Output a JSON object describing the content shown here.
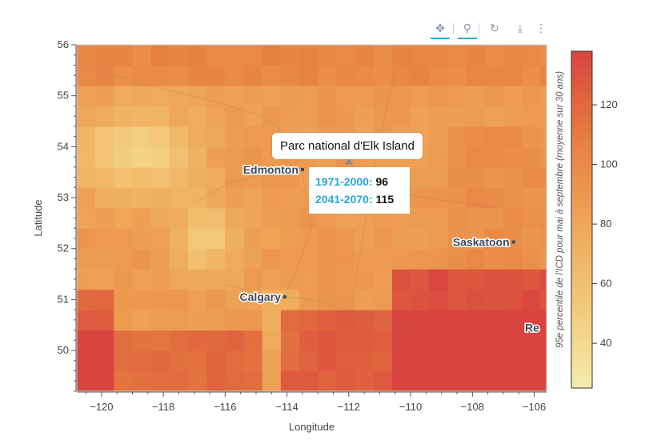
{
  "toolbar": {
    "tools": [
      {
        "name": "pan-icon",
        "glyph": "✥",
        "active": true
      },
      {
        "name": "wheel-zoom-icon",
        "glyph": "⚲",
        "active": true
      },
      {
        "name": "reset-icon",
        "glyph": "↻",
        "active": false
      },
      {
        "name": "save-icon",
        "glyph": "⤓",
        "active": false
      },
      {
        "name": "more-icon",
        "glyph": "⋮",
        "active": false
      }
    ]
  },
  "map": {
    "xlabel": "Longitude",
    "ylabel": "Latitude",
    "xlim": [
      -120.8,
      -105.6
    ],
    "ylim": [
      49.2,
      56.0
    ],
    "xticks": [
      -120,
      -118,
      -116,
      -114,
      -112,
      -110,
      -108,
      -106
    ],
    "xtick_labels": [
      "−120",
      "−118",
      "−116",
      "−114",
      "−112",
      "−110",
      "−108",
      "−106"
    ],
    "yticks": [
      50,
      51,
      52,
      53,
      54,
      55,
      56
    ],
    "cities": [
      {
        "name": "Edmonton",
        "lon": -113.5,
        "lat": 53.55
      },
      {
        "name": "Calgary",
        "lon": -114.07,
        "lat": 51.05
      },
      {
        "name": "Saskatoon",
        "lon": -106.67,
        "lat": 52.13
      },
      {
        "name": "Re",
        "lon": -104.6,
        "lat": 50.45
      }
    ]
  },
  "tooltip": {
    "title": "Parc national d'Elk Island",
    "lon": -112.0,
    "lat": 53.7,
    "rows": [
      {
        "period": "1971-2000:",
        "value": "96"
      },
      {
        "period": "2041-2070:",
        "value": "115"
      }
    ]
  },
  "colorbar": {
    "label": "95e percentile de l'ICD pour mai à septembre (moyenne sur 30 ans)",
    "min": 25,
    "max": 138,
    "ticks": [
      40,
      60,
      80,
      100,
      120
    ],
    "colors": [
      "#f5ecae",
      "#f2c878",
      "#eea456",
      "#e67c3f",
      "#d8443f"
    ]
  },
  "chart_data": {
    "type": "heatmap",
    "title": "",
    "xlabel": "Longitude",
    "ylabel": "Latitude",
    "x_range": [
      -120.8,
      -105.6
    ],
    "y_range": [
      49.2,
      56.0
    ],
    "value_range": [
      25,
      138
    ],
    "colorbar_label": "95e percentile de l'ICD pour mai à septembre (moyenne sur 30 ans)",
    "colorbar_ticks": [
      40,
      60,
      80,
      100,
      120
    ],
    "point_annotation": {
      "name": "Parc national d'Elk Island",
      "1971-2000": 96,
      "2041-2070": 115
    }
  }
}
